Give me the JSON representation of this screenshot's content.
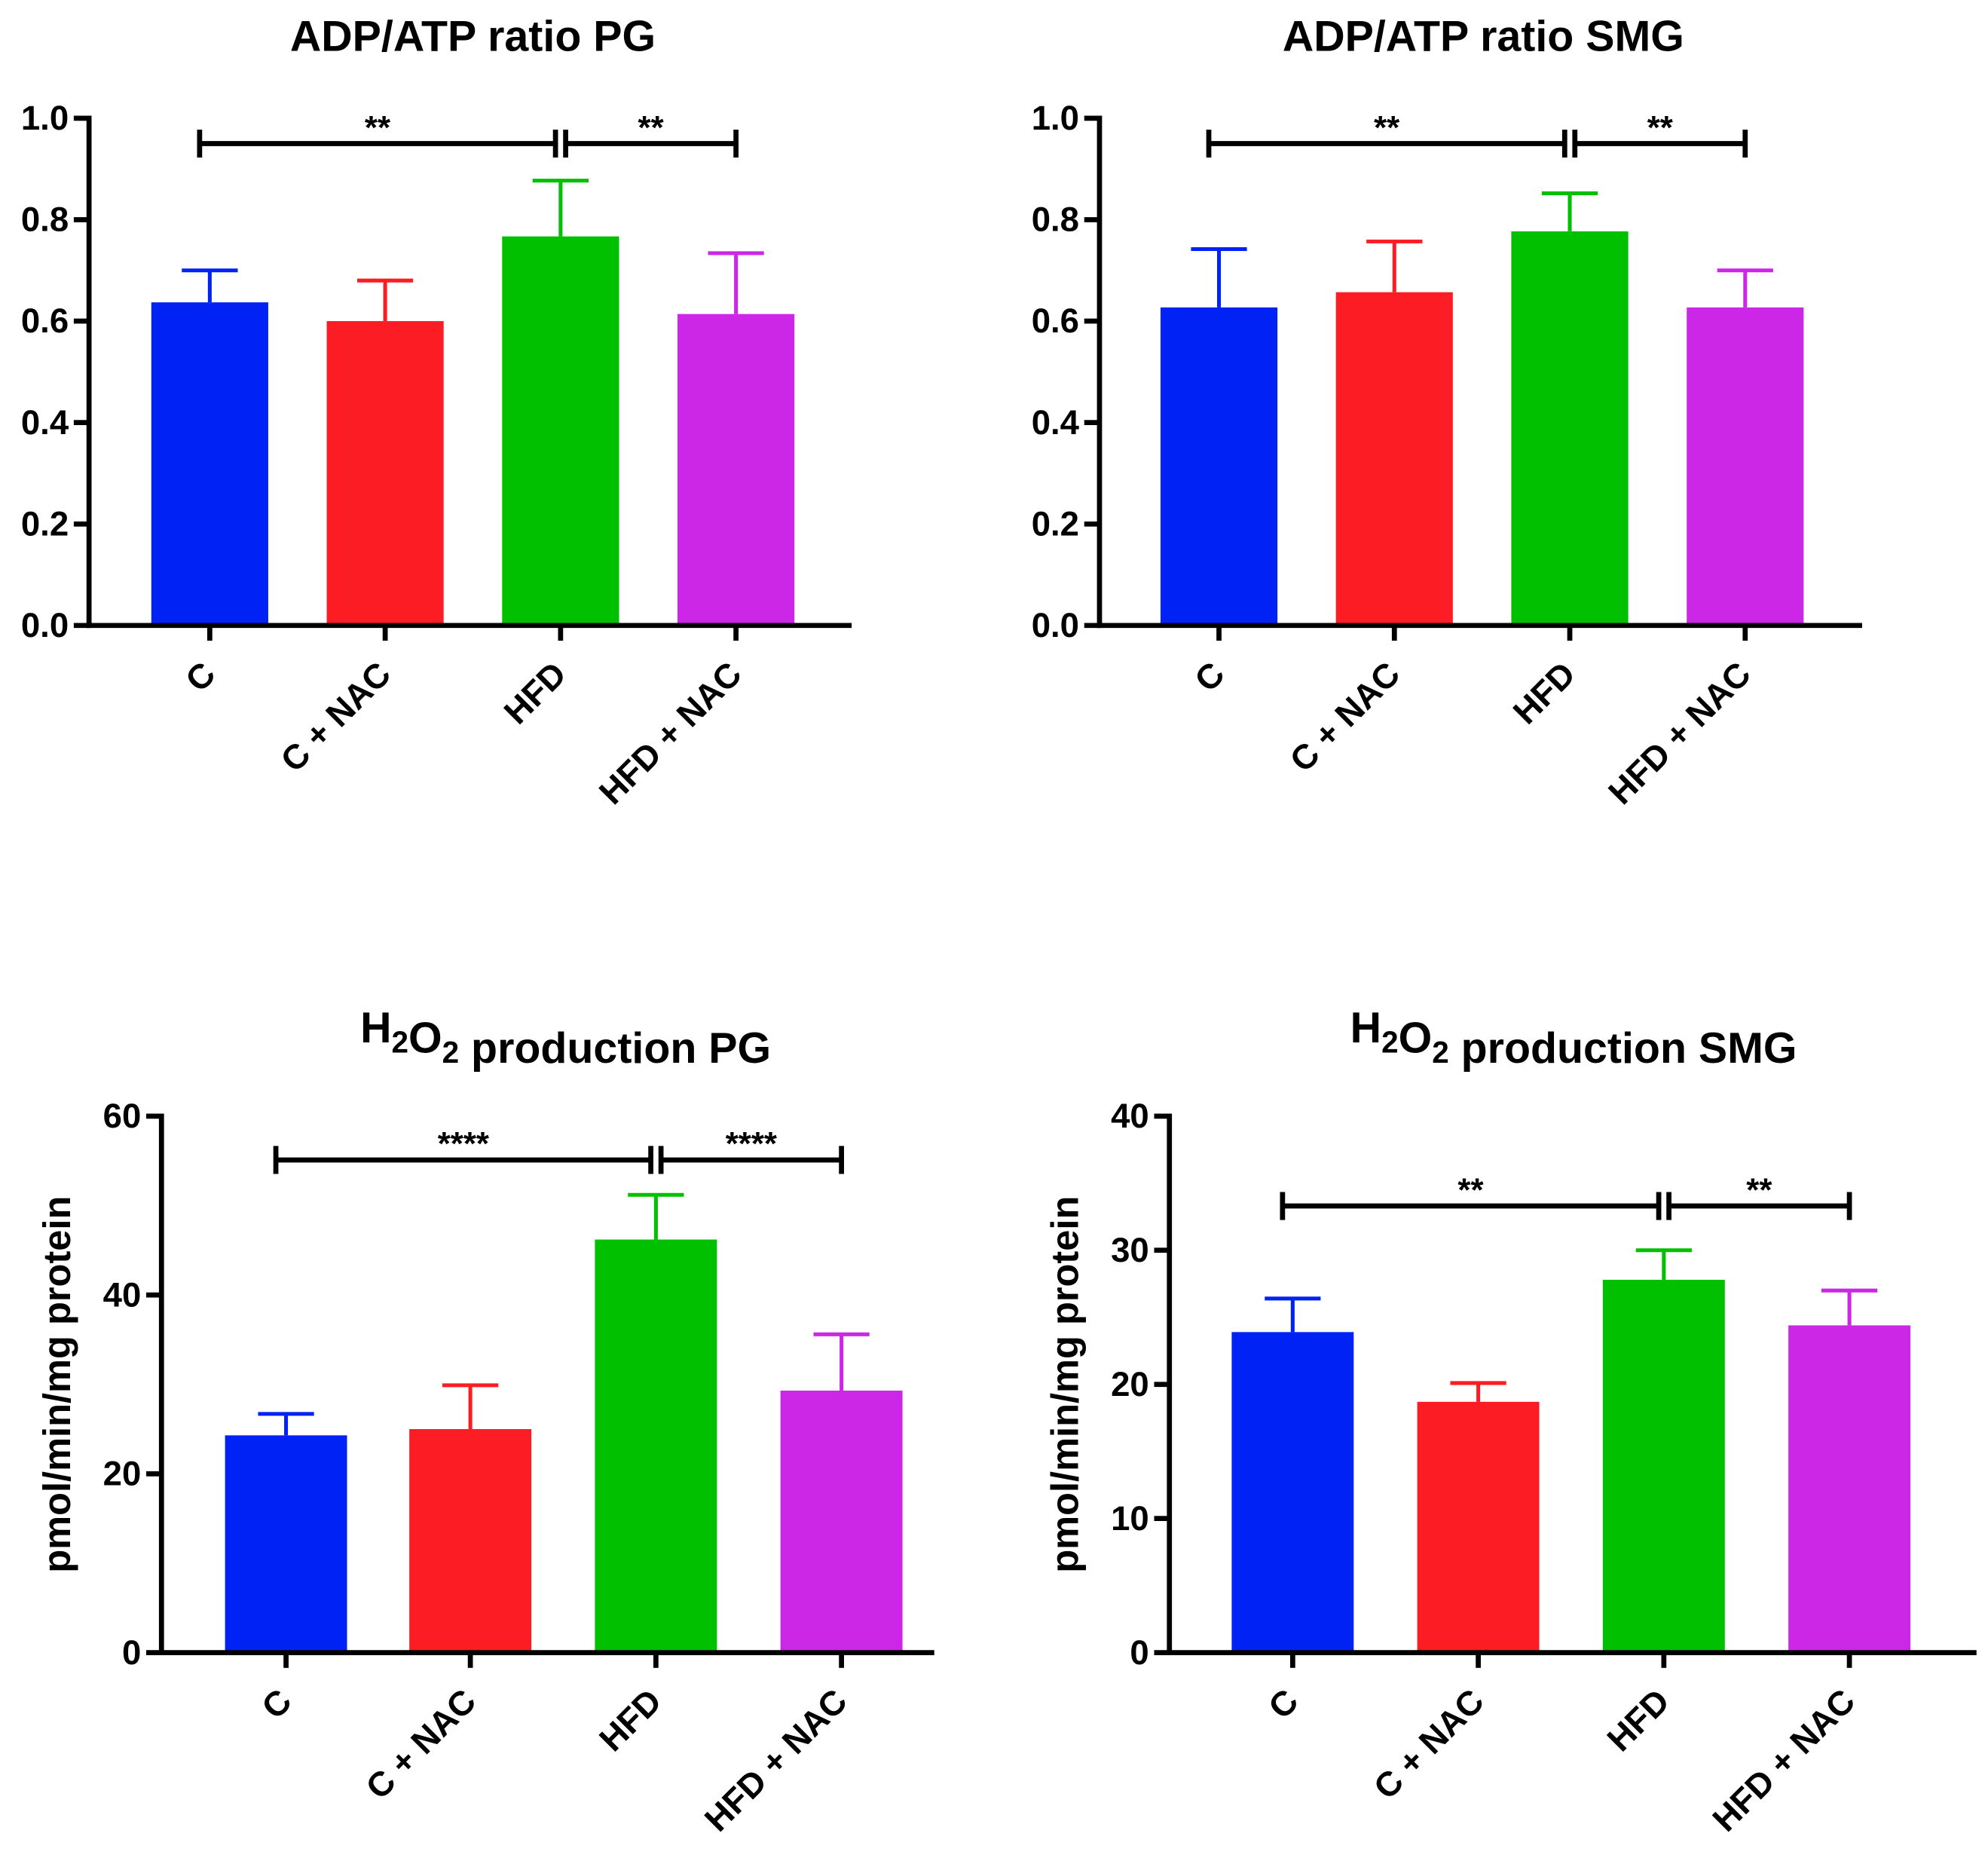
{
  "chart_data": [
    {
      "type": "bar",
      "title": "ADP/ATP ratio PG",
      "title_parts": [
        {
          "t": "ADP/ATP ratio PG"
        }
      ],
      "ylabel": "",
      "categories": [
        "C",
        "C + NAC",
        "HFD",
        "HFD + NAC"
      ],
      "values": [
        0.637,
        0.6,
        0.767,
        0.614
      ],
      "error_upper": [
        0.7,
        0.68,
        0.877,
        0.734
      ],
      "ylim": [
        0,
        1.0
      ],
      "yticks": [
        0,
        0.2,
        0.4,
        0.6,
        0.8,
        1.0
      ],
      "ytick_labels": [
        "0.0",
        "0.2",
        "0.4",
        "0.6",
        "0.8",
        "1.0"
      ],
      "significance": [
        {
          "from": 0,
          "to": 2,
          "label": "**",
          "y": 0.95
        },
        {
          "from": 2,
          "to": 3,
          "label": "**",
          "y": 0.95
        }
      ]
    },
    {
      "type": "bar",
      "title": "ADP/ATP ratio SMG",
      "title_parts": [
        {
          "t": "ADP/ATP ratio SMG"
        }
      ],
      "ylabel": "",
      "categories": [
        "C",
        "C + NAC",
        "HFD",
        "HFD + NAC"
      ],
      "values": [
        0.627,
        0.657,
        0.777,
        0.627
      ],
      "error_upper": [
        0.742,
        0.757,
        0.852,
        0.7
      ],
      "ylim": [
        0,
        1.0
      ],
      "yticks": [
        0,
        0.2,
        0.4,
        0.6,
        0.8,
        1.0
      ],
      "ytick_labels": [
        "0.0",
        "0.2",
        "0.4",
        "0.6",
        "0.8",
        "1.0"
      ],
      "significance": [
        {
          "from": 0,
          "to": 2,
          "label": "**",
          "y": 0.95
        },
        {
          "from": 2,
          "to": 3,
          "label": "**",
          "y": 0.95
        }
      ]
    },
    {
      "type": "bar",
      "title": "H2O2 production PG",
      "title_parts": [
        {
          "t": "H"
        },
        {
          "t": "2",
          "sub": true
        },
        {
          "t": "O"
        },
        {
          "t": "2",
          "sub": true
        },
        {
          "t": " production PG"
        }
      ],
      "ylabel": "pmol/min/mg protein",
      "categories": [
        "C",
        "C + NAC",
        "HFD",
        "HFD + NAC"
      ],
      "values": [
        24.3,
        25.0,
        46.2,
        29.3
      ],
      "error_upper": [
        26.7,
        29.9,
        51.2,
        35.6
      ],
      "ylim": [
        0,
        60
      ],
      "yticks": [
        0,
        20,
        40,
        60
      ],
      "ytick_labels": [
        "0",
        "20",
        "40",
        "60"
      ],
      "significance": [
        {
          "from": 0,
          "to": 2,
          "label": "****",
          "y": 55.1
        },
        {
          "from": 2,
          "to": 3,
          "label": "****",
          "y": 55.1
        }
      ]
    },
    {
      "type": "bar",
      "title": "H2O2 production SMG",
      "title_parts": [
        {
          "t": "H"
        },
        {
          "t": "2",
          "sub": true
        },
        {
          "t": "O"
        },
        {
          "t": "2",
          "sub": true
        },
        {
          "t": " production SMG"
        }
      ],
      "ylabel": "pmol/min/mg protein",
      "categories": [
        "C",
        "C + NAC",
        "HFD",
        "HFD + NAC"
      ],
      "values": [
        23.9,
        18.7,
        27.8,
        24.4
      ],
      "error_upper": [
        26.4,
        20.1,
        30.0,
        27.0
      ],
      "ylim": [
        0,
        40
      ],
      "yticks": [
        0,
        10,
        20,
        30,
        40
      ],
      "ytick_labels": [
        "0",
        "10",
        "20",
        "30",
        "40"
      ],
      "significance": [
        {
          "from": 0,
          "to": 2,
          "label": "**",
          "y": 33.3
        },
        {
          "from": 2,
          "to": 3,
          "label": "**",
          "y": 33.3
        }
      ]
    }
  ],
  "colors": [
    "#0022f5",
    "#fc1c24",
    "#00c000",
    "#cc27e6"
  ]
}
